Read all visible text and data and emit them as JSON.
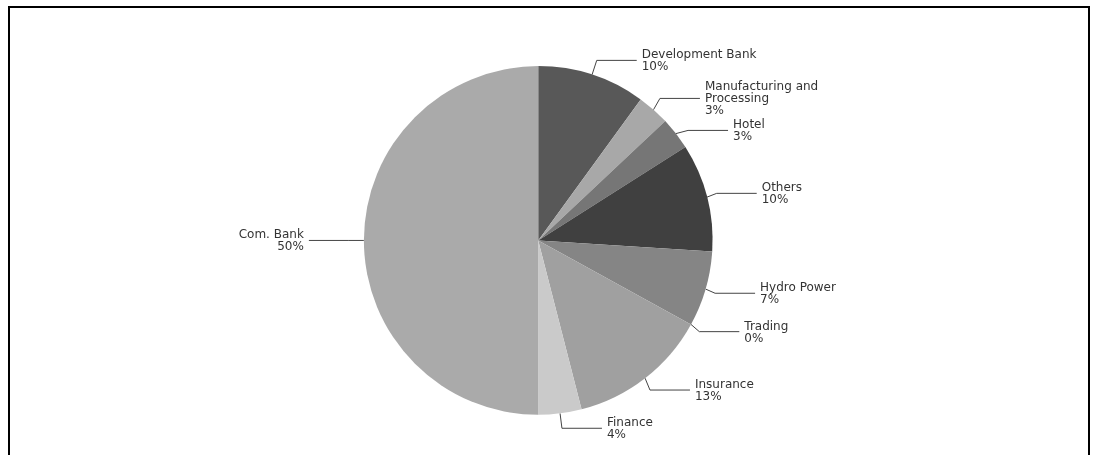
{
  "chart_data": {
    "type": "pie",
    "categories": [
      "Development Bank",
      "Manufacturing and\nProcessing",
      "Hotel",
      "Others",
      "Hydro Power",
      "Trading",
      "Insurance",
      "Finance",
      "Com. Bank"
    ],
    "values": [
      10,
      3,
      3,
      10,
      7,
      0,
      13,
      4,
      50
    ],
    "value_labels": [
      "10%",
      "3%",
      "3%",
      "10%",
      "7%",
      "0%",
      "13%",
      "4%",
      "50%"
    ],
    "colors": [
      "#585858",
      "#a8a8a8",
      "#767676",
      "#404040",
      "#858585",
      "#bbbbbb",
      "#a0a0a0",
      "#cacaca",
      "#aaaaaa"
    ]
  }
}
